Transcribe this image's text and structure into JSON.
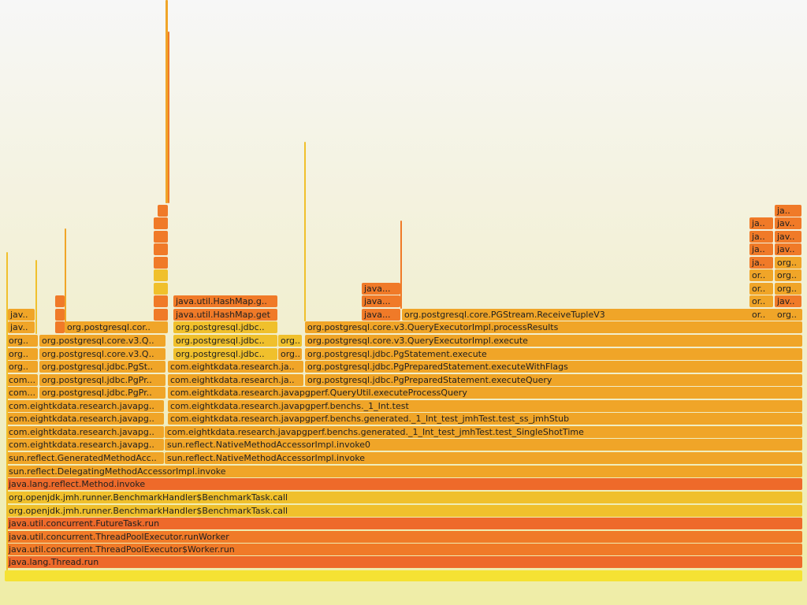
{
  "title": "",
  "palette": {
    "root": "#f5e233",
    "orange": "#f07a28",
    "dark_orange": "#ee6a2a",
    "gold": "#f0c02c",
    "amber": "#f0a528"
  },
  "frames": [
    {
      "label": "",
      "color": "root"
    },
    {
      "label": "java.lang.Thread.run",
      "color": "dark_orange"
    },
    {
      "label": "java.util.concurrent.ThreadPoolExecutor$Worker.run",
      "color": "orange"
    },
    {
      "label": "java.util.concurrent.ThreadPoolExecutor.runWorker",
      "color": "orange"
    },
    {
      "label": "java.util.concurrent.FutureTask.run",
      "color": "dark_orange"
    },
    {
      "label": "org.openjdk.jmh.runner.BenchmarkHandler$BenchmarkTask.call",
      "color": "gold"
    },
    {
      "label": "org.openjdk.jmh.runner.BenchmarkHandler$BenchmarkTask.call",
      "color": "gold"
    },
    {
      "label": "java.lang.reflect.Method.invoke",
      "color": "dark_orange"
    },
    {
      "label": "sun.reflect.DelegatingMethodAccessorImpl.invoke",
      "color": "amber"
    },
    {
      "label": "sun.reflect.GeneratedMethodAcc..",
      "color": "amber"
    },
    {
      "label": "sun.reflect.NativeMethodAccessorImpl.invoke",
      "color": "amber"
    },
    {
      "label": "com.eightkdata.research.javapg..",
      "color": "amber"
    },
    {
      "label": "sun.reflect.NativeMethodAccessorImpl.invoke0",
      "color": "amber"
    },
    {
      "label": "com.eightkdata.research.javapg..",
      "color": "amber"
    },
    {
      "label": "com.eightkdata.research.javapgperf.benchs.generated._1_Int_test_jmhTest.test_SingleShotTime",
      "color": "amber"
    },
    {
      "label": "com.eightkdata.research.javapg..",
      "color": "amber"
    },
    {
      "label": "com.eightkdata.research.javapgperf.benchs.generated._1_Int_test_jmhTest.test_ss_jmhStub",
      "color": "amber"
    },
    {
      "label": "com.eightkdata.research.javapg..",
      "color": "amber"
    },
    {
      "label": "com.eightkdata.research.javapgperf.benchs._1_Int.test",
      "color": "amber"
    },
    {
      "label": "com...",
      "color": "amber"
    },
    {
      "label": "org.postgresql.jdbc.PgPr..",
      "color": "amber"
    },
    {
      "label": "com.eightkdata.research.javapgperf.QueryUtil.executeProcessQuery",
      "color": "amber"
    },
    {
      "label": "com...",
      "color": "amber"
    },
    {
      "label": "org.postgresql.jdbc.PgPr..",
      "color": "amber"
    },
    {
      "label": "com.eightkdata.research.ja..",
      "color": "amber"
    },
    {
      "label": "org.postgresql.jdbc.PgPreparedStatement.executeQuery",
      "color": "amber"
    },
    {
      "label": "org..",
      "color": "amber"
    },
    {
      "label": "org.postgresql.jdbc.PgSt..",
      "color": "amber"
    },
    {
      "label": "com.eightkdata.research.ja..",
      "color": "amber"
    },
    {
      "label": "org.postgresql.jdbc.PgPreparedStatement.executeWithFlags",
      "color": "amber"
    },
    {
      "label": "org..",
      "color": "amber"
    },
    {
      "label": "org.postgresql.core.v3.Q..",
      "color": "amber"
    },
    {
      "label": "org.postgresql.jdbc..",
      "color": "gold"
    },
    {
      "label": "org..",
      "color": "amber"
    },
    {
      "label": "org.postgresql.jdbc.PgStatement.execute",
      "color": "amber"
    },
    {
      "label": "org..",
      "color": "amber"
    },
    {
      "label": "org.postgresql.core.v3.Q..",
      "color": "amber"
    },
    {
      "label": "org.postgresql.jdbc..",
      "color": "gold"
    },
    {
      "label": "org..",
      "color": "gold"
    },
    {
      "label": "org.postgresql.core.v3.QueryExecutorImpl.execute",
      "color": "amber"
    },
    {
      "label": "jav..",
      "color": "amber"
    },
    {
      "label": "",
      "color": "orange"
    },
    {
      "label": "org.postgresql.cor..",
      "color": "amber"
    },
    {
      "label": "",
      "color": "amber"
    },
    {
      "label": "org.postgresql.jdbc..",
      "color": "gold"
    },
    {
      "label": "org.postgresql.core.v3.QueryExecutorImpl.processResults",
      "color": "amber"
    },
    {
      "label": "jav..",
      "color": "amber"
    },
    {
      "label": "",
      "color": "orange"
    },
    {
      "label": "",
      "color": "orange"
    },
    {
      "label": "java.util.HashMap.get",
      "color": "orange"
    },
    {
      "label": "java...",
      "color": "orange"
    },
    {
      "label": "org.postgresql.core.PGStream.ReceiveTupleV3",
      "color": "amber"
    },
    {
      "label": "or..",
      "color": "amber"
    },
    {
      "label": "org..",
      "color": "amber"
    },
    {
      "label": "",
      "color": "orange"
    },
    {
      "label": "",
      "color": "orange"
    },
    {
      "label": "java.util.HashMap.g..",
      "color": "orange"
    },
    {
      "label": "java...",
      "color": "orange"
    },
    {
      "label": "or..",
      "color": "amber"
    },
    {
      "label": "jav..",
      "color": "orange"
    },
    {
      "label": "",
      "color": "gold"
    },
    {
      "label": "java...",
      "color": "orange"
    },
    {
      "label": "or..",
      "color": "amber"
    },
    {
      "label": "org..",
      "color": "amber"
    },
    {
      "label": "",
      "color": "gold"
    },
    {
      "label": "or..",
      "color": "amber"
    },
    {
      "label": "org..",
      "color": "amber"
    },
    {
      "label": "",
      "color": "orange"
    },
    {
      "label": "ja..",
      "color": "orange"
    },
    {
      "label": "org..",
      "color": "amber"
    },
    {
      "label": "",
      "color": "orange"
    },
    {
      "label": "ja..",
      "color": "orange"
    },
    {
      "label": "jav..",
      "color": "orange"
    },
    {
      "label": "",
      "color": "orange"
    },
    {
      "label": "ja..",
      "color": "orange"
    },
    {
      "label": "jav..",
      "color": "orange"
    },
    {
      "label": "",
      "color": "orange"
    },
    {
      "label": "ja..",
      "color": "orange"
    },
    {
      "label": "jav..",
      "color": "orange"
    },
    {
      "label": "",
      "color": "orange"
    },
    {
      "label": "ja..",
      "color": "orange"
    }
  ]
}
